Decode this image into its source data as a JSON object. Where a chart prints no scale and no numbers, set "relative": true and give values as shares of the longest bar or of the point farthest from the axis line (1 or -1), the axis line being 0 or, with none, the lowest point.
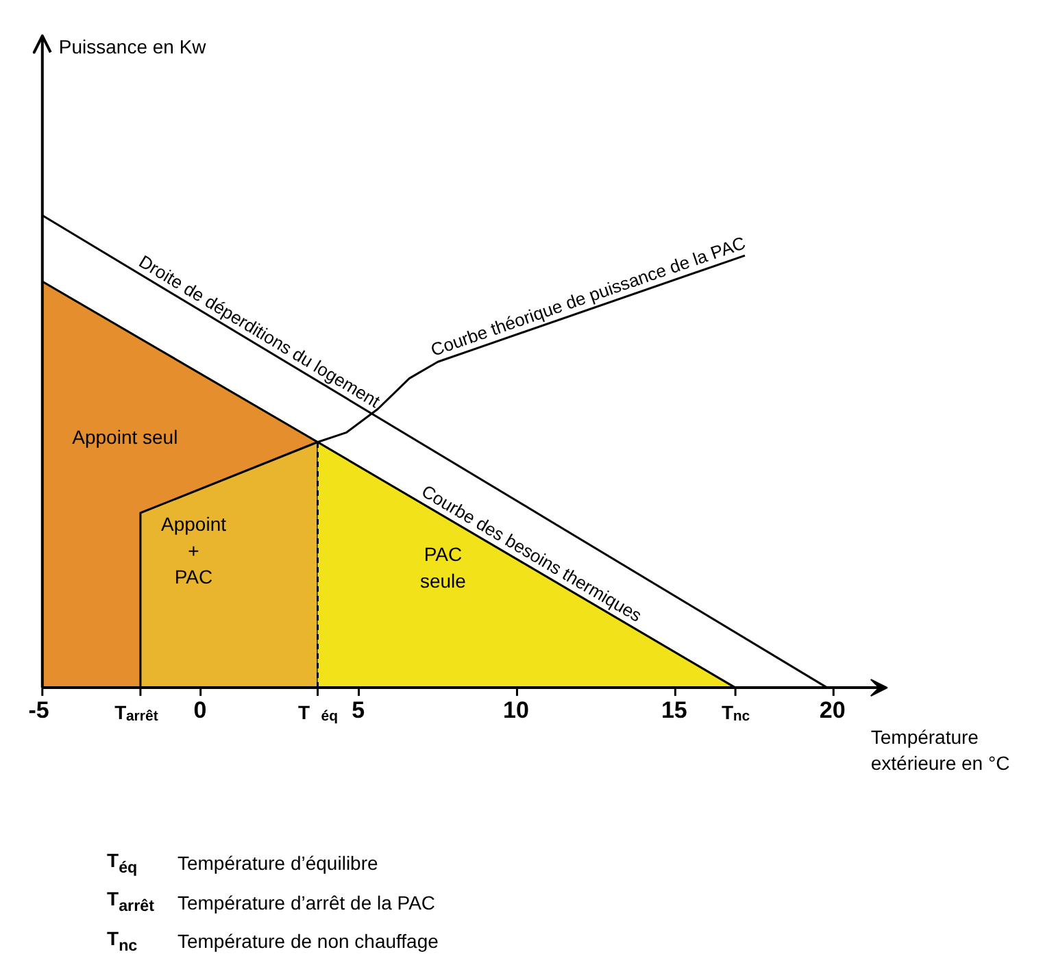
{
  "chart_data": {
    "type": "line",
    "relative": true,
    "grid": false,
    "xlabel": "Température\nextérieure en °C",
    "xlim": [
      -5,
      21.7
    ],
    "xticks": [
      -5,
      {
        "value": -1.9,
        "label": "T$_{arrêt}$"
      },
      0,
      {
        "value": 3.7,
        "label": "T $_{éq}$"
      },
      5,
      10,
      15,
      {
        "value": 16.9,
        "label": "T$_{nc}$"
      },
      20
    ],
    "series": [
      {
        "type": "area",
        "name": "Appoint seul",
        "color": "#e58e2e",
        "x": [
          -5,
          3.7
        ],
        "values": [
          0.86,
          0.52
        ]
      },
      {
        "type": "area",
        "name": "Appoint\n+\nPAC",
        "color": "#e9b52f",
        "x": [
          -1.9,
          3.7
        ],
        "values": [
          0.37,
          0.52
        ]
      },
      {
        "type": "area",
        "name": "PAC\nseule",
        "color": "#f2e21a",
        "x": [
          3.7,
          16.9
        ],
        "values": [
          0.52,
          0
        ]
      },
      {
        "color": "#000000",
        "line_style": "dashed",
        "x": [
          3.7,
          3.7
        ],
        "values": [
          0,
          0.52
        ]
      },
      {
        "name": "Droite de déperditions du logement",
        "color": "#000000",
        "x": [
          -5,
          19.8
        ],
        "values": [
          1,
          0
        ]
      },
      {
        "name": "Courbe des besoins thermiques",
        "color": "#000000",
        "x": [
          -5,
          3.7,
          16.9
        ],
        "values": [
          0.86,
          0.52,
          0
        ]
      },
      {
        "name": "Courbe théorique de puissance de la PAC",
        "color": "#000000",
        "x": [
          -1.9,
          -1.9,
          3.7,
          4.6,
          5.6,
          6.6,
          7.5,
          17.2
        ],
        "values": [
          0,
          0.37,
          0.52,
          0.54,
          0.59,
          0.655,
          0.69,
          0.915
        ]
      }
    ],
    "annotations": [
      "Puissance en Kw",
      "T$_{éq}$",
      "Température d’équilibre",
      "T$_{arrêt}$",
      "Température d’arrêt de la PAC",
      "T$_{nc}$",
      "Température de non chauffage"
    ]
  }
}
